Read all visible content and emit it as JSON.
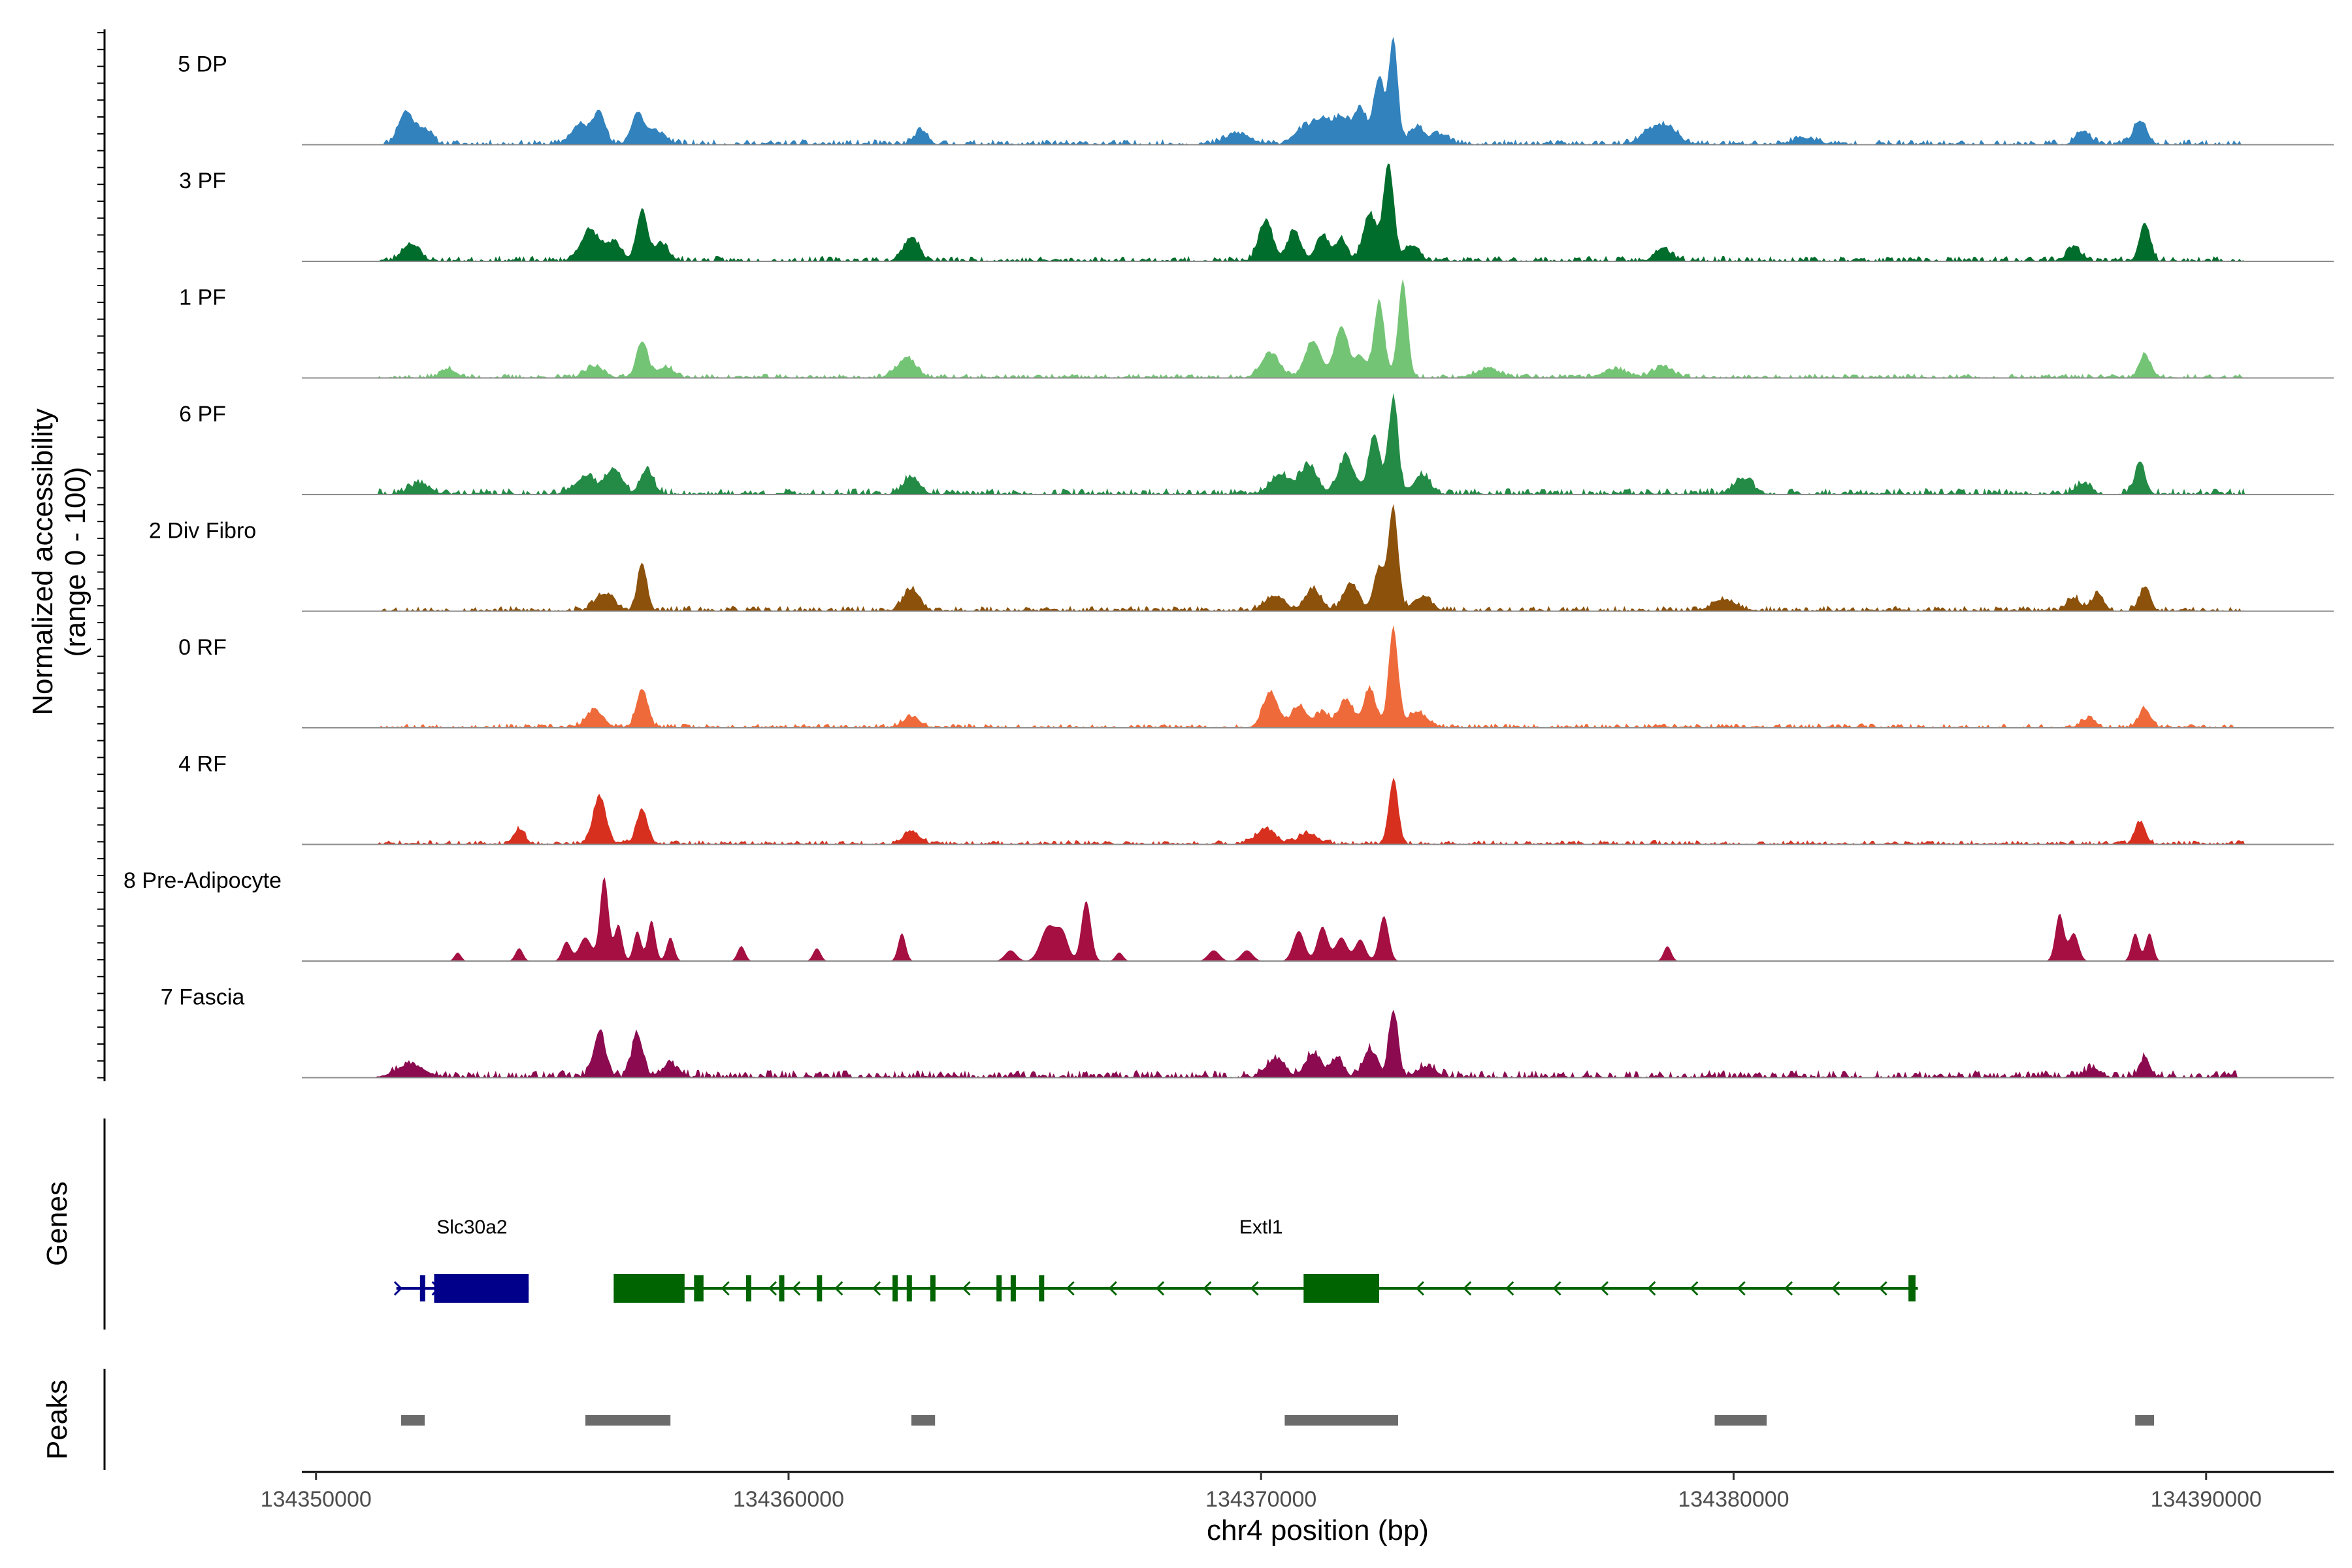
{
  "chart_data": {
    "type": "area",
    "title": "",
    "ylabel_line1": "Normalized accessibility",
    "ylabel_line2": "(range 0 - 100)",
    "xlabel": "chr4 position (bp)",
    "xlim": [
      134349700,
      134392700
    ],
    "ylim": [
      0,
      100
    ],
    "x_ticks": [
      134350000,
      134360000,
      134370000,
      134380000,
      134390000
    ],
    "x_tick_labels": [
      "134350000",
      "134360000",
      "134370000",
      "134380000",
      "134390000"
    ],
    "panel_labels": {
      "genes": "Genes",
      "peaks": "Peaks"
    },
    "tracks": [
      {
        "name": "5 DP",
        "color": "#3182BD",
        "peaks": [
          [
            134351900,
            30,
            160
          ],
          [
            134352300,
            14,
            150
          ],
          [
            134355600,
            18,
            200
          ],
          [
            134356000,
            30,
            120
          ],
          [
            134356800,
            28,
            130
          ],
          [
            134357200,
            12,
            200
          ],
          [
            134362800,
            12,
            140
          ],
          [
            134369500,
            10,
            250
          ],
          [
            134370900,
            14,
            220
          ],
          [
            134371300,
            20,
            180
          ],
          [
            134371700,
            24,
            160
          ],
          [
            134372100,
            32,
            140
          ],
          [
            134372500,
            62,
            110
          ],
          [
            134372800,
            100,
            90
          ],
          [
            134373300,
            16,
            150
          ],
          [
            134373800,
            9,
            180
          ],
          [
            134378200,
            10,
            200
          ],
          [
            134378600,
            16,
            220
          ],
          [
            134381500,
            6,
            250
          ],
          [
            134387400,
            12,
            150
          ],
          [
            134388600,
            22,
            140
          ]
        ],
        "noise_start": 134351300,
        "noise_end": 134390800,
        "noise_amp": 5,
        "seed": 11
      },
      {
        "name": "3 PF",
        "color": "#006D2C",
        "peaks": [
          [
            134352000,
            16,
            180
          ],
          [
            134355800,
            28,
            200
          ],
          [
            134356300,
            16,
            160
          ],
          [
            134356900,
            48,
            110
          ],
          [
            134357300,
            16,
            160
          ],
          [
            134362600,
            22,
            160
          ],
          [
            134370100,
            36,
            150
          ],
          [
            134370700,
            28,
            140
          ],
          [
            134371300,
            24,
            140
          ],
          [
            134371700,
            20,
            120
          ],
          [
            134372300,
            44,
            140
          ],
          [
            134372700,
            90,
            110
          ],
          [
            134373200,
            14,
            150
          ],
          [
            134378500,
            12,
            160
          ],
          [
            134387200,
            12,
            150
          ],
          [
            134388700,
            36,
            110
          ]
        ],
        "noise_start": 134351300,
        "noise_end": 134390800,
        "noise_amp": 5,
        "seed": 23
      },
      {
        "name": "1 PF",
        "color": "#74C476",
        "peaks": [
          [
            134352800,
            8,
            160
          ],
          [
            134355900,
            10,
            200
          ],
          [
            134356900,
            34,
            120
          ],
          [
            134357400,
            10,
            160
          ],
          [
            134362500,
            18,
            200
          ],
          [
            134370200,
            22,
            200
          ],
          [
            134371100,
            34,
            170
          ],
          [
            134371700,
            48,
            140
          ],
          [
            134372100,
            20,
            120
          ],
          [
            134372500,
            70,
            110
          ],
          [
            134373000,
            90,
            100
          ],
          [
            134374800,
            8,
            250
          ],
          [
            134377500,
            8,
            250
          ],
          [
            134378500,
            10,
            200
          ],
          [
            134388700,
            22,
            110
          ]
        ],
        "noise_start": 134351300,
        "noise_end": 134390800,
        "noise_amp": 4,
        "seed": 37
      },
      {
        "name": "6 PF",
        "color": "#238B45",
        "peaks": [
          [
            134352200,
            10,
            200
          ],
          [
            134355700,
            16,
            220
          ],
          [
            134356300,
            24,
            160
          ],
          [
            134357000,
            22,
            140
          ],
          [
            134362600,
            16,
            170
          ],
          [
            134370400,
            18,
            200
          ],
          [
            134371000,
            26,
            180
          ],
          [
            134371800,
            34,
            170
          ],
          [
            134372400,
            56,
            120
          ],
          [
            134372800,
            90,
            100
          ],
          [
            134373400,
            18,
            170
          ],
          [
            134380200,
            14,
            200
          ],
          [
            134387400,
            10,
            160
          ],
          [
            134388600,
            30,
            110
          ]
        ],
        "noise_start": 134351300,
        "noise_end": 134390800,
        "noise_amp": 6,
        "seed": 41
      },
      {
        "name": "2 Div Fibro",
        "color": "#8C510A",
        "peaks": [
          [
            134356100,
            16,
            200
          ],
          [
            134356900,
            44,
            100
          ],
          [
            134362600,
            20,
            170
          ],
          [
            134370300,
            14,
            200
          ],
          [
            134371100,
            20,
            170
          ],
          [
            134371900,
            26,
            160
          ],
          [
            134372500,
            40,
            120
          ],
          [
            134372800,
            96,
            100
          ],
          [
            134373400,
            12,
            200
          ],
          [
            134379800,
            10,
            250
          ],
          [
            134387200,
            12,
            140
          ],
          [
            134387700,
            16,
            120
          ],
          [
            134388700,
            22,
            110
          ]
        ],
        "noise_start": 134351300,
        "noise_end": 134390800,
        "noise_amp": 5,
        "seed": 53
      },
      {
        "name": "0 RF",
        "color": "#EE6A3A",
        "peaks": [
          [
            134355900,
            16,
            180
          ],
          [
            134356900,
            36,
            120
          ],
          [
            134362600,
            10,
            180
          ],
          [
            134370200,
            32,
            160
          ],
          [
            134370800,
            20,
            160
          ],
          [
            134371300,
            14,
            150
          ],
          [
            134371800,
            26,
            150
          ],
          [
            134372300,
            36,
            130
          ],
          [
            134372800,
            92,
            100
          ],
          [
            134373300,
            14,
            200
          ],
          [
            134387500,
            8,
            150
          ],
          [
            134388700,
            18,
            120
          ]
        ],
        "noise_start": 134351300,
        "noise_end": 134390800,
        "noise_amp": 4,
        "seed": 67
      },
      {
        "name": "4 RF",
        "color": "#D7301F",
        "peaks": [
          [
            134354300,
            14,
            120
          ],
          [
            134356000,
            44,
            140
          ],
          [
            134356900,
            32,
            120
          ],
          [
            134362600,
            12,
            170
          ],
          [
            134370100,
            14,
            200
          ],
          [
            134371000,
            10,
            200
          ],
          [
            134372800,
            60,
            100
          ],
          [
            134388600,
            20,
            110
          ]
        ],
        "noise_start": 134351300,
        "noise_end": 134390800,
        "noise_amp": 4,
        "seed": 71
      },
      {
        "name": "8 Pre-Adipocyte",
        "color": "#A50F42",
        "peaks": [
          [
            134353000,
            8,
            70
          ],
          [
            134354300,
            12,
            80
          ],
          [
            134355300,
            18,
            90
          ],
          [
            134355700,
            22,
            130
          ],
          [
            134356100,
            78,
            90
          ],
          [
            134356400,
            34,
            80
          ],
          [
            134356800,
            28,
            80
          ],
          [
            134357100,
            38,
            80
          ],
          [
            134357500,
            22,
            80
          ],
          [
            134359000,
            14,
            80
          ],
          [
            134360600,
            12,
            80
          ],
          [
            134362400,
            26,
            80
          ],
          [
            134364700,
            10,
            120
          ],
          [
            134365500,
            32,
            160
          ],
          [
            134365800,
            24,
            120
          ],
          [
            134366300,
            56,
            100
          ],
          [
            134367000,
            8,
            80
          ],
          [
            134369000,
            10,
            120
          ],
          [
            134369700,
            10,
            120
          ],
          [
            134370800,
            28,
            120
          ],
          [
            134371300,
            32,
            110
          ],
          [
            134371700,
            22,
            120
          ],
          [
            134372100,
            20,
            110
          ],
          [
            134372600,
            42,
            100
          ],
          [
            134378600,
            14,
            80
          ],
          [
            134386900,
            44,
            90
          ],
          [
            134387200,
            26,
            100
          ],
          [
            134388500,
            26,
            80
          ],
          [
            134388800,
            26,
            80
          ]
        ],
        "noise_start": 0,
        "noise_end": 0,
        "noise_amp": 0,
        "seed": 83
      },
      {
        "name": "7 Fascia",
        "color": "#8B0A50",
        "peaks": [
          [
            134352000,
            12,
            300
          ],
          [
            134356000,
            42,
            130
          ],
          [
            134356800,
            40,
            120
          ],
          [
            134357500,
            10,
            200
          ],
          [
            134370300,
            16,
            200
          ],
          [
            134371100,
            22,
            160
          ],
          [
            134371600,
            16,
            140
          ],
          [
            134372300,
            26,
            140
          ],
          [
            134372800,
            60,
            100
          ],
          [
            134373500,
            10,
            200
          ],
          [
            134387600,
            8,
            150
          ],
          [
            134388700,
            18,
            110
          ]
        ],
        "noise_start": 134351300,
        "noise_end": 134390800,
        "noise_amp": 7,
        "seed": 97
      }
    ],
    "genes": [
      {
        "name": "Slc30a2",
        "label_x": 134353300,
        "color": "#00008B",
        "strand": "+",
        "line": [
          134351700,
          134354500
        ],
        "exons": [
          [
            134352200,
            134352300,
            "narrow"
          ],
          [
            134352500,
            134354500,
            "wide"
          ]
        ],
        "arrows": [
          134351800,
          134352600
        ]
      },
      {
        "name": "Extl1",
        "label_x": 134370000,
        "color": "#006400",
        "strand": "-",
        "line": [
          134356300,
          134383900
        ],
        "exons": [
          [
            134356300,
            134357800,
            "wide"
          ],
          [
            134358000,
            134358200,
            "narrow"
          ],
          [
            134359100,
            134359200,
            "narrow"
          ],
          [
            134359800,
            134359900,
            "narrow"
          ],
          [
            134360600,
            134360700,
            "narrow"
          ],
          [
            134362200,
            134362300,
            "narrow"
          ],
          [
            134362500,
            134362600,
            "narrow"
          ],
          [
            134363000,
            134363100,
            "narrow"
          ],
          [
            134364400,
            134364500,
            "narrow"
          ],
          [
            134364700,
            134364800,
            "narrow"
          ],
          [
            134365300,
            134365400,
            "narrow"
          ],
          [
            134370900,
            134372500,
            "wide"
          ],
          [
            134383700,
            134383850,
            "narrow"
          ]
        ],
        "arrows": [
          134358600,
          134359600,
          134360100,
          134361000,
          134361800,
          134363700,
          134365900,
          134366800,
          134367800,
          134368800,
          134369800,
          134373300,
          134374300,
          134375200,
          134376200,
          134377200,
          134378200,
          134379100,
          134380100,
          134381100,
          134382100,
          134383100
        ]
      }
    ],
    "peak_regions": [
      [
        134351800,
        134352300
      ],
      [
        134355700,
        134357500
      ],
      [
        134362600,
        134363100
      ],
      [
        134370500,
        134372900
      ],
      [
        134379600,
        134380700
      ],
      [
        134388500,
        134388900
      ]
    ]
  }
}
